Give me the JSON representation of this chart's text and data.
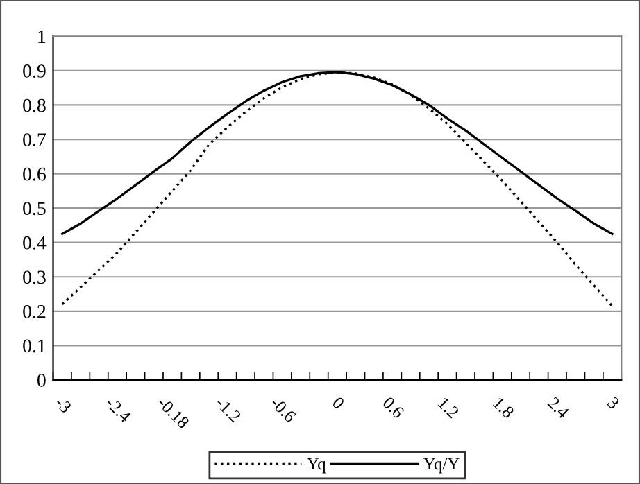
{
  "chart_data": {
    "type": "line",
    "categories": [
      "-3",
      null,
      null,
      "-2.4",
      null,
      null,
      "-0.18",
      null,
      null,
      "-1.2",
      null,
      null,
      "-0.6",
      null,
      null,
      "0",
      null,
      null,
      "0.6",
      null,
      null,
      "1.2",
      null,
      null,
      "1.8",
      null,
      null,
      "2.4",
      null,
      null,
      "3"
    ],
    "series": [
      {
        "name": "Yq",
        "color": "#000000",
        "line_style": "dotted",
        "values": [
          0.22,
          0.27,
          0.32,
          0.37,
          0.43,
          0.49,
          0.55,
          0.61,
          0.685,
          0.735,
          0.78,
          0.82,
          0.852,
          0.876,
          0.89,
          0.895,
          0.892,
          0.88,
          0.86,
          0.83,
          0.79,
          0.745,
          0.69,
          0.635,
          0.58,
          0.52,
          0.46,
          0.4,
          0.335,
          0.275,
          0.215
        ]
      },
      {
        "name": "Yq/Y",
        "color": "#000000",
        "line_style": "solid",
        "values": [
          0.425,
          0.455,
          0.492,
          0.528,
          0.567,
          0.607,
          0.645,
          0.693,
          0.735,
          0.774,
          0.811,
          0.842,
          0.867,
          0.884,
          0.893,
          0.896,
          0.89,
          0.877,
          0.858,
          0.831,
          0.8,
          0.761,
          0.726,
          0.686,
          0.646,
          0.607,
          0.567,
          0.528,
          0.492,
          0.455,
          0.425
        ]
      }
    ],
    "ylim": [
      0,
      1
    ],
    "yticks": [
      0,
      0.1,
      0.2,
      0.3,
      0.4,
      0.5,
      0.6,
      0.7,
      0.8,
      0.9,
      1
    ],
    "grid": "y",
    "legend": "bottom",
    "marker": "none"
  }
}
